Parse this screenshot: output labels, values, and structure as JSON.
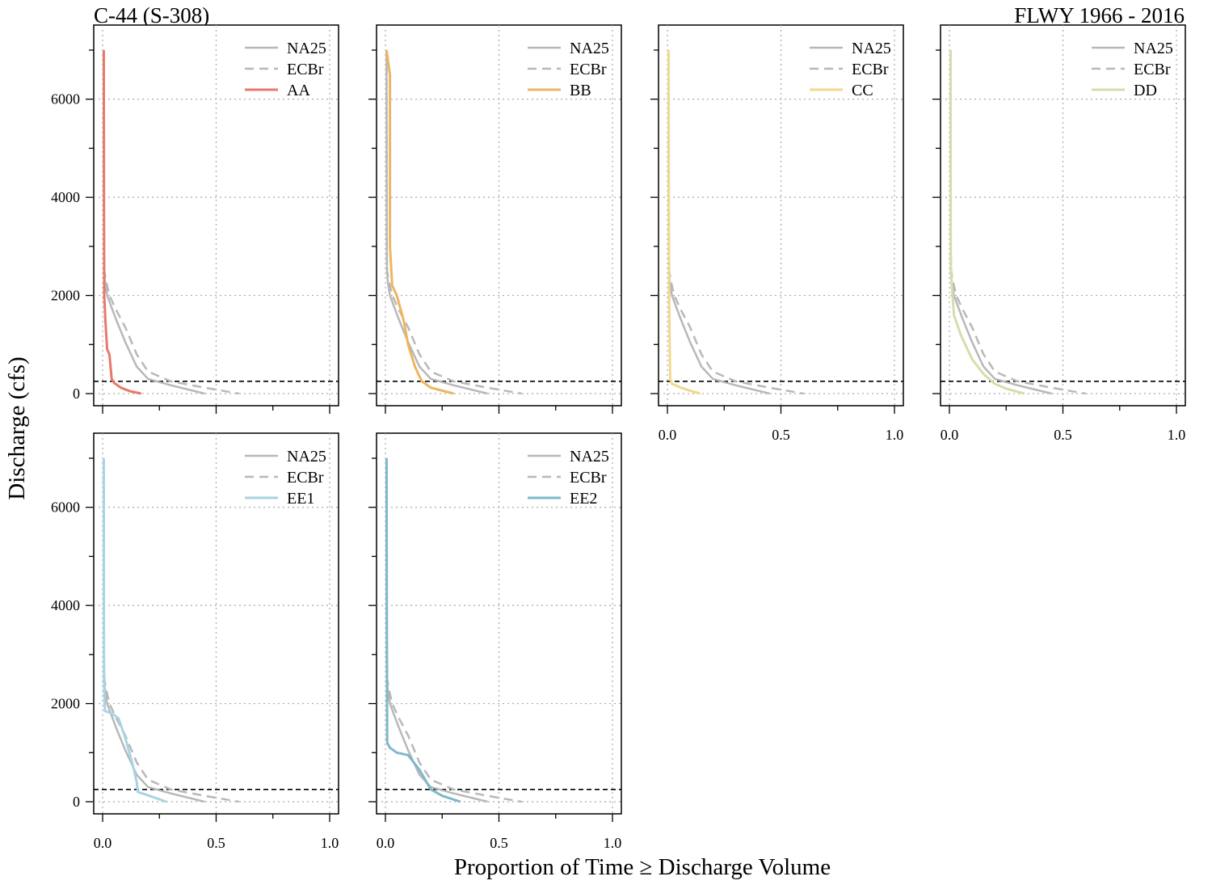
{
  "figure": {
    "title_left": "C-44 (S-308)",
    "title_right": "FLWY 1966 - 2016",
    "xlabel": "Proportion of Time ≥ Discharge Volume",
    "ylabel": "Discharge (cfs)"
  },
  "chart_data": {
    "type": "line",
    "x_ticks": [
      "0.0",
      "0.5",
      "1.0"
    ],
    "y_ticks": [
      "0",
      "2000",
      "4000",
      "6000"
    ],
    "xlim": [
      0,
      1
    ],
    "ylim": [
      0,
      7000
    ],
    "threshold": 250,
    "grid": true,
    "legend_position": "top-right",
    "reference_series": [
      {
        "name": "NA25",
        "style": "solid",
        "color": "#b8b8b8",
        "points": [
          [
            0.005,
            7000
          ],
          [
            0.006,
            3000
          ],
          [
            0.007,
            2500
          ],
          [
            0.01,
            2300
          ],
          [
            0.02,
            2000
          ],
          [
            0.04,
            1750
          ],
          [
            0.06,
            1500
          ],
          [
            0.1,
            1050
          ],
          [
            0.15,
            550
          ],
          [
            0.2,
            300
          ],
          [
            0.3,
            170
          ],
          [
            0.45,
            0
          ]
        ]
      },
      {
        "name": "ECBr",
        "style": "dashed",
        "color": "#b8b8b8",
        "points": [
          [
            0.005,
            7000
          ],
          [
            0.006,
            3000
          ],
          [
            0.008,
            2500
          ],
          [
            0.015,
            2300
          ],
          [
            0.03,
            2000
          ],
          [
            0.06,
            1700
          ],
          [
            0.1,
            1350
          ],
          [
            0.15,
            800
          ],
          [
            0.2,
            450
          ],
          [
            0.3,
            250
          ],
          [
            0.45,
            120
          ],
          [
            0.6,
            0
          ]
        ]
      }
    ],
    "panels": [
      {
        "name": "AA",
        "color": "#e8796a",
        "points": [
          [
            0.005,
            7000
          ],
          [
            0.006,
            4000
          ],
          [
            0.007,
            2000
          ],
          [
            0.012,
            1500
          ],
          [
            0.02,
            900
          ],
          [
            0.03,
            800
          ],
          [
            0.04,
            300
          ],
          [
            0.05,
            220
          ],
          [
            0.08,
            120
          ],
          [
            0.12,
            50
          ],
          [
            0.17,
            0
          ]
        ]
      },
      {
        "name": "BB",
        "color": "#eeb560",
        "points": [
          [
            0.005,
            7000
          ],
          [
            0.02,
            6500
          ],
          [
            0.02,
            3000
          ],
          [
            0.03,
            2200
          ],
          [
            0.05,
            2000
          ],
          [
            0.08,
            1500
          ],
          [
            0.1,
            1000
          ],
          [
            0.13,
            550
          ],
          [
            0.16,
            250
          ],
          [
            0.2,
            120
          ],
          [
            0.3,
            0
          ]
        ]
      },
      {
        "name": "CC",
        "color": "#f0d98c",
        "points": [
          [
            0.005,
            7000
          ],
          [
            0.006,
            4000
          ],
          [
            0.008,
            2000
          ],
          [
            0.01,
            1000
          ],
          [
            0.012,
            300
          ],
          [
            0.02,
            200
          ],
          [
            0.06,
            120
          ],
          [
            0.1,
            60
          ],
          [
            0.145,
            0
          ]
        ]
      },
      {
        "name": "DD",
        "color": "#d7ddaa",
        "points": [
          [
            0.005,
            7000
          ],
          [
            0.006,
            2500
          ],
          [
            0.02,
            1600
          ],
          [
            0.05,
            1200
          ],
          [
            0.1,
            700
          ],
          [
            0.15,
            400
          ],
          [
            0.2,
            200
          ],
          [
            0.25,
            100
          ],
          [
            0.33,
            0
          ]
        ]
      },
      {
        "name": "EE1",
        "color": "#a9d4e2",
        "points": [
          [
            0.005,
            7000
          ],
          [
            0.006,
            2500
          ],
          [
            0.01,
            1850
          ],
          [
            0.04,
            1800
          ],
          [
            0.07,
            1700
          ],
          [
            0.1,
            1300
          ],
          [
            0.13,
            800
          ],
          [
            0.15,
            400
          ],
          [
            0.155,
            200
          ],
          [
            0.2,
            130
          ],
          [
            0.28,
            0
          ]
        ]
      },
      {
        "name": "EE2",
        "color": "#7fb8c9",
        "points": [
          [
            0.005,
            7000
          ],
          [
            0.006,
            4000
          ],
          [
            0.008,
            1200
          ],
          [
            0.02,
            1100
          ],
          [
            0.05,
            1000
          ],
          [
            0.1,
            950
          ],
          [
            0.15,
            650
          ],
          [
            0.2,
            250
          ],
          [
            0.25,
            120
          ],
          [
            0.33,
            0
          ]
        ]
      }
    ]
  }
}
